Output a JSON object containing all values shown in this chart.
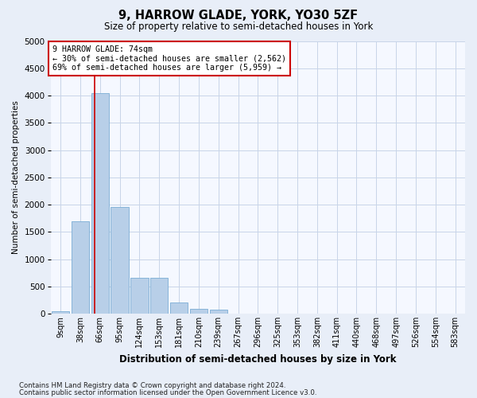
{
  "title": "9, HARROW GLADE, YORK, YO30 5ZF",
  "subtitle": "Size of property relative to semi-detached houses in York",
  "xlabel": "Distribution of semi-detached houses by size in York",
  "ylabel": "Number of semi-detached properties",
  "bar_labels": [
    "9sqm",
    "38sqm",
    "66sqm",
    "95sqm",
    "124sqm",
    "153sqm",
    "181sqm",
    "210sqm",
    "239sqm",
    "267sqm",
    "296sqm",
    "325sqm",
    "353sqm",
    "382sqm",
    "411sqm",
    "440sqm",
    "468sqm",
    "497sqm",
    "526sqm",
    "554sqm",
    "583sqm"
  ],
  "bar_values": [
    50,
    1700,
    4050,
    1950,
    650,
    650,
    200,
    90,
    70,
    0,
    0,
    0,
    0,
    0,
    0,
    0,
    0,
    0,
    0,
    0,
    0
  ],
  "bar_color": "#b8cfe8",
  "bar_edge_color": "#7aadd4",
  "ylim": [
    0,
    5000
  ],
  "yticks": [
    0,
    500,
    1000,
    1500,
    2000,
    2500,
    3000,
    3500,
    4000,
    4500,
    5000
  ],
  "vline_x": 1.72,
  "vline_color": "#cc0000",
  "annotation_box_color": "#cc0000",
  "annotation_text_line1": "9 HARROW GLADE: 74sqm",
  "annotation_text_line2": "← 30% of semi-detached houses are smaller (2,562)",
  "annotation_text_line3": "69% of semi-detached houses are larger (5,959) →",
  "footer_line1": "Contains HM Land Registry data © Crown copyright and database right 2024.",
  "footer_line2": "Contains public sector information licensed under the Open Government Licence v3.0.",
  "background_color": "#e8eef8",
  "plot_background_color": "#f5f8ff",
  "grid_color": "#c8d4e8"
}
